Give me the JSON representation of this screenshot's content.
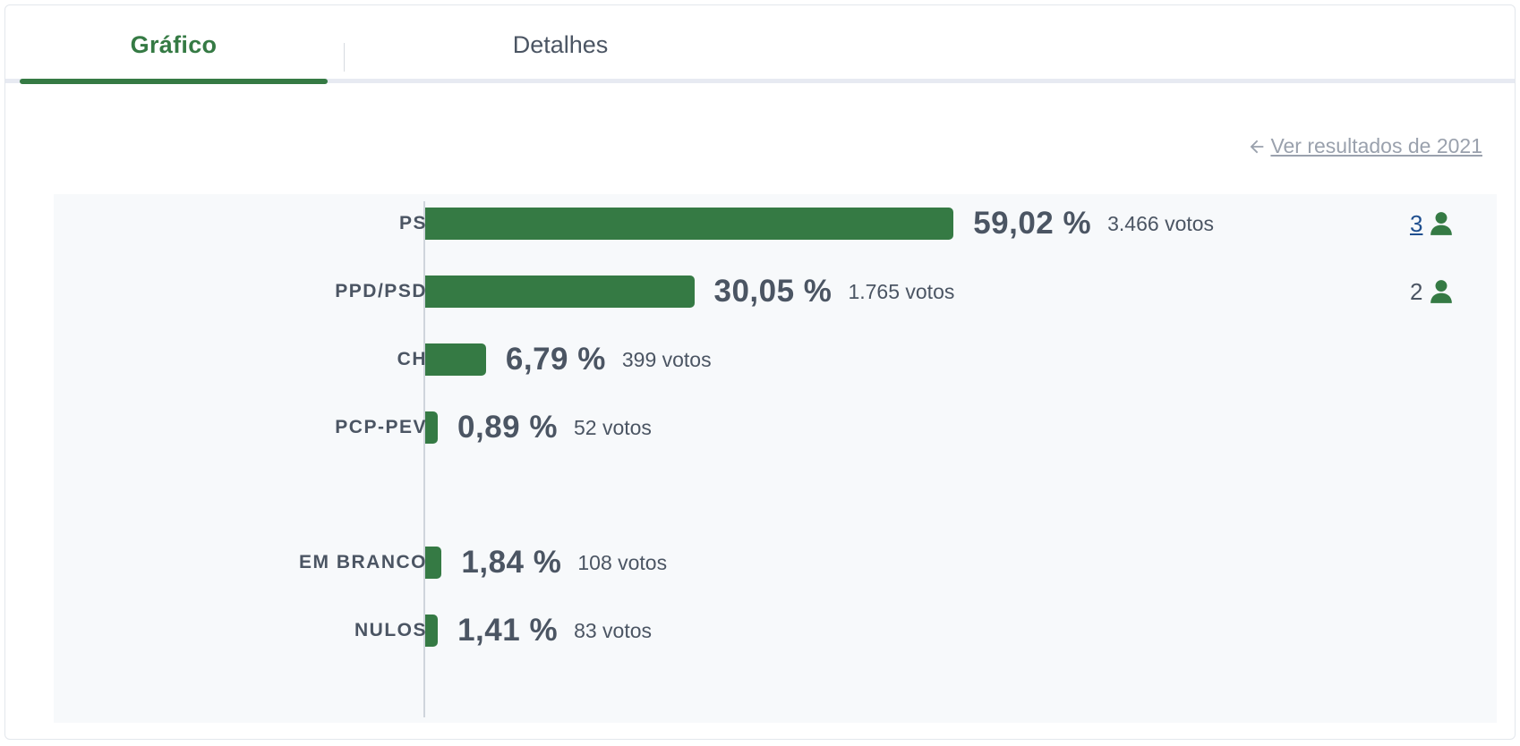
{
  "tabs": {
    "active_label": "Gráfico",
    "inactive_label": "Detalhes"
  },
  "previous_results_link": "Ver resultados de 2021",
  "colors": {
    "accent": "#357a44",
    "text": "#4b5563",
    "link": "#1f4f8f",
    "muted_link": "#9aa1ad"
  },
  "icons": {
    "back": "arrow-left-icon",
    "seat": "person-icon"
  },
  "chart_data": {
    "type": "bar",
    "orientation": "horizontal",
    "xlim": [
      0,
      100
    ],
    "rows": [
      {
        "label": "PS",
        "pct": 59.02,
        "pct_text": "59,02 %",
        "votes_text": "3.466 votos",
        "seats": "3",
        "seats_link": true
      },
      {
        "label": "PPD/PSD",
        "pct": 30.05,
        "pct_text": "30,05 %",
        "votes_text": "1.765 votos",
        "seats": "2",
        "seats_link": false
      },
      {
        "label": "CH",
        "pct": 6.79,
        "pct_text": "6,79 %",
        "votes_text": "399 votos",
        "seats": null
      },
      {
        "label": "PCP-PEV",
        "pct": 0.89,
        "pct_text": "0,89 %",
        "votes_text": "52 votos",
        "seats": null
      },
      {
        "label": "EM BRANCO",
        "pct": 1.84,
        "pct_text": "1,84 %",
        "votes_text": "108 votos",
        "seats": null
      },
      {
        "label": "NULOS",
        "pct": 1.41,
        "pct_text": "1,41 %",
        "votes_text": "83 votos",
        "seats": null
      }
    ]
  }
}
